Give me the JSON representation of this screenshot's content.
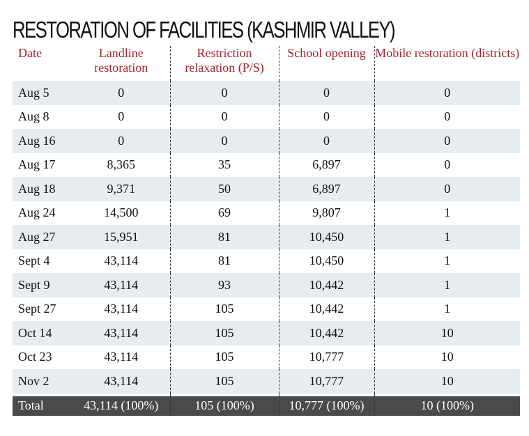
{
  "title": "RESTORATION OF FACILITIES (KASHMIR VALLEY)",
  "headers": [
    "Date",
    "Landline restoration",
    "Restriction relaxation (P/S)",
    "School opening",
    "Mobile restoration (districts)"
  ],
  "rows": [
    [
      "Aug 5",
      "0",
      "0",
      "0",
      "0"
    ],
    [
      "Aug 8",
      "0",
      "0",
      "0",
      "0"
    ],
    [
      "Aug 16",
      "0",
      "0",
      "0",
      "0"
    ],
    [
      "Aug 17",
      "8,365",
      "35",
      "6,897",
      "0"
    ],
    [
      "Aug 18",
      "9,371",
      "50",
      "6,897",
      "0"
    ],
    [
      "Aug 24",
      "14,500",
      "69",
      "9,807",
      "1"
    ],
    [
      "Aug 27",
      "15,951",
      "81",
      "10,450",
      "1"
    ],
    [
      "Sept 4",
      "43,114",
      "81",
      "10,450",
      "1"
    ],
    [
      "Sept 9",
      "43,114",
      "93",
      "10,442",
      "1"
    ],
    [
      "Sept 27",
      "43,114",
      "105",
      "10,442",
      "1"
    ],
    [
      "Oct 14",
      "43,114",
      "105",
      "10,442",
      "10"
    ],
    [
      "Oct 23",
      "43,114",
      "105",
      "10,777",
      "10"
    ],
    [
      "Nov 2",
      "43,114",
      "105",
      "10,777",
      "10"
    ]
  ],
  "total": [
    "Total",
    "43,114 (100%)",
    "105 (100%)",
    "10,777 (100%)",
    "10 (100%)"
  ],
  "colors": {
    "header": "#a5232a",
    "row_shade": "#e6ecef",
    "total_bg": "#4a4a4a"
  }
}
